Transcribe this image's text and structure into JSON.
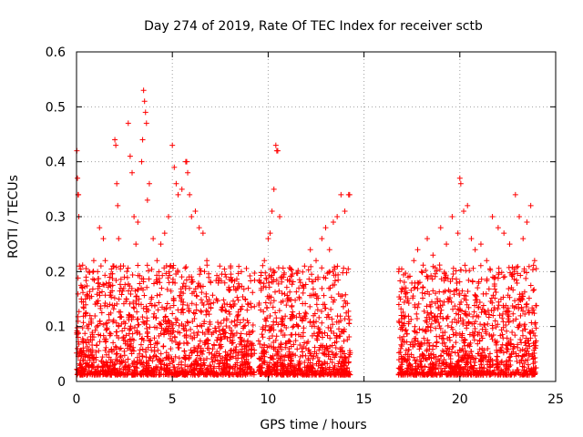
{
  "chart_data": {
    "type": "scatter",
    "title": "Day 274 of 2019, Rate Of TEC Index for receiver sctb",
    "xlabel": "GPS time / hours",
    "ylabel": "ROTI / TECUs",
    "xlim": [
      0,
      25
    ],
    "ylim": [
      0,
      0.6
    ],
    "xticks": [
      0,
      5,
      10,
      15,
      20,
      25
    ],
    "yticks": [
      0,
      0.1,
      0.2,
      0.3,
      0.4,
      0.5,
      0.6
    ],
    "xtick_labels": [
      "0",
      "5",
      "10",
      "15",
      "20",
      "25"
    ],
    "ytick_labels": [
      "0",
      "0.1",
      "0.2",
      "0.3",
      "0.4",
      "0.5",
      "0.6"
    ],
    "grid": true,
    "marker": "+",
    "color": "#ff0000",
    "data_gap_hours": [
      14.3,
      16.8
    ],
    "segments": [
      {
        "start": 0.0,
        "end": 9.3
      },
      {
        "start": 9.5,
        "end": 14.3
      },
      {
        "start": 16.8,
        "end": 24.0
      }
    ],
    "series": [
      {
        "name": "ROTI",
        "points": [
          [
            0.02,
            0.42
          ],
          [
            0.05,
            0.37
          ],
          [
            0.08,
            0.34
          ],
          [
            0.1,
            0.34
          ],
          [
            0.12,
            0.3
          ],
          [
            0.15,
            0.21
          ],
          [
            0.3,
            0.17
          ],
          [
            0.5,
            0.19
          ],
          [
            0.7,
            0.12
          ],
          [
            0.9,
            0.22
          ],
          [
            1.1,
            0.2
          ],
          [
            1.2,
            0.28
          ],
          [
            1.4,
            0.26
          ],
          [
            1.5,
            0.22
          ],
          [
            1.7,
            0.18
          ],
          [
            1.9,
            0.21
          ],
          [
            2.0,
            0.44
          ],
          [
            2.05,
            0.43
          ],
          [
            2.1,
            0.36
          ],
          [
            2.15,
            0.32
          ],
          [
            2.2,
            0.26
          ],
          [
            2.3,
            0.21
          ],
          [
            2.5,
            0.19
          ],
          [
            2.7,
            0.47
          ],
          [
            2.8,
            0.41
          ],
          [
            2.9,
            0.38
          ],
          [
            3.0,
            0.3
          ],
          [
            3.1,
            0.25
          ],
          [
            3.2,
            0.29
          ],
          [
            3.4,
            0.4
          ],
          [
            3.45,
            0.44
          ],
          [
            3.5,
            0.53
          ],
          [
            3.55,
            0.51
          ],
          [
            3.6,
            0.49
          ],
          [
            3.65,
            0.47
          ],
          [
            3.7,
            0.33
          ],
          [
            3.8,
            0.36
          ],
          [
            4.0,
            0.26
          ],
          [
            4.2,
            0.22
          ],
          [
            4.4,
            0.25
          ],
          [
            4.6,
            0.27
          ],
          [
            4.8,
            0.3
          ],
          [
            5.0,
            0.43
          ],
          [
            5.1,
            0.39
          ],
          [
            5.2,
            0.36
          ],
          [
            5.3,
            0.34
          ],
          [
            5.5,
            0.35
          ],
          [
            5.7,
            0.4
          ],
          [
            5.75,
            0.4
          ],
          [
            5.8,
            0.38
          ],
          [
            5.9,
            0.34
          ],
          [
            6.0,
            0.3
          ],
          [
            6.2,
            0.31
          ],
          [
            6.4,
            0.28
          ],
          [
            6.6,
            0.27
          ],
          [
            6.8,
            0.22
          ],
          [
            7.0,
            0.18
          ],
          [
            7.3,
            0.15
          ],
          [
            7.6,
            0.13
          ],
          [
            8.0,
            0.14
          ],
          [
            8.4,
            0.17
          ],
          [
            8.6,
            0.2
          ],
          [
            8.8,
            0.15
          ],
          [
            9.0,
            0.09
          ],
          [
            9.6,
            0.18
          ],
          [
            9.8,
            0.22
          ],
          [
            10.0,
            0.26
          ],
          [
            10.1,
            0.27
          ],
          [
            10.2,
            0.31
          ],
          [
            10.3,
            0.35
          ],
          [
            10.4,
            0.43
          ],
          [
            10.45,
            0.42
          ],
          [
            10.5,
            0.42
          ],
          [
            10.6,
            0.3
          ],
          [
            10.8,
            0.19
          ],
          [
            11.0,
            0.15
          ],
          [
            11.3,
            0.12
          ],
          [
            11.6,
            0.17
          ],
          [
            11.9,
            0.21
          ],
          [
            12.2,
            0.24
          ],
          [
            12.5,
            0.22
          ],
          [
            12.8,
            0.26
          ],
          [
            13.0,
            0.28
          ],
          [
            13.2,
            0.24
          ],
          [
            13.4,
            0.29
          ],
          [
            13.6,
            0.3
          ],
          [
            13.8,
            0.34
          ],
          [
            14.0,
            0.31
          ],
          [
            14.2,
            0.34
          ],
          [
            14.25,
            0.34
          ],
          [
            16.9,
            0.15
          ],
          [
            17.1,
            0.17
          ],
          [
            17.3,
            0.19
          ],
          [
            17.6,
            0.22
          ],
          [
            17.8,
            0.24
          ],
          [
            18.0,
            0.2
          ],
          [
            18.3,
            0.26
          ],
          [
            18.6,
            0.23
          ],
          [
            19.0,
            0.28
          ],
          [
            19.3,
            0.25
          ],
          [
            19.6,
            0.3
          ],
          [
            19.9,
            0.27
          ],
          [
            20.0,
            0.37
          ],
          [
            20.05,
            0.36
          ],
          [
            20.2,
            0.31
          ],
          [
            20.4,
            0.32
          ],
          [
            20.6,
            0.26
          ],
          [
            20.8,
            0.24
          ],
          [
            21.1,
            0.25
          ],
          [
            21.4,
            0.22
          ],
          [
            21.7,
            0.3
          ],
          [
            22.0,
            0.28
          ],
          [
            22.3,
            0.27
          ],
          [
            22.6,
            0.25
          ],
          [
            22.9,
            0.34
          ],
          [
            23.1,
            0.3
          ],
          [
            23.3,
            0.26
          ],
          [
            23.5,
            0.29
          ],
          [
            23.7,
            0.32
          ],
          [
            23.9,
            0.22
          ]
        ]
      }
    ]
  }
}
